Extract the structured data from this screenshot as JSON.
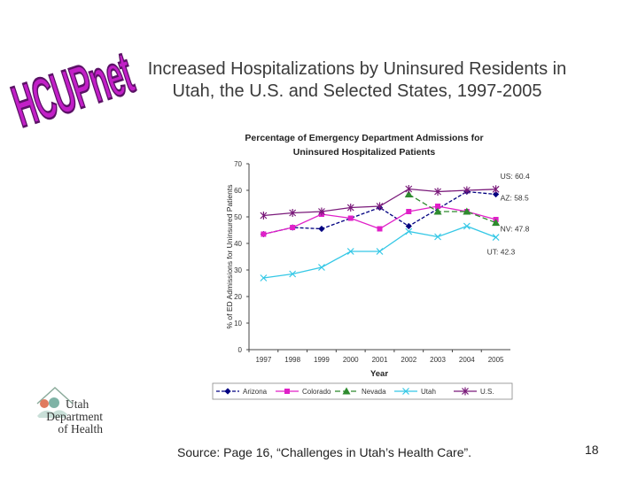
{
  "logo": {
    "text": "HCUPnet"
  },
  "slide": {
    "title_line1": "Increased Hospitalizations by Uninsured Residents in",
    "title_line2": "Utah, the U.S. and Selected States, 1997-2005",
    "source": "Source: Page 16, “Challenges in Utah’s Health Care”.",
    "page_number": "18"
  },
  "agency": {
    "line1": "Utah",
    "line2": "Department",
    "line3": "of Health"
  },
  "colors": {
    "title": "#3a3a3a",
    "logo_fill": "#c21fc7",
    "logo_outline": "#5b1266"
  },
  "chart_data": {
    "type": "line",
    "title_line1": "Percentage of Emergency Department Admissions for",
    "title_line2": "Uninsured Hospitalized Patients",
    "xlabel": "Year",
    "ylabel": "% of ED Admissions for Uninsured Patients",
    "ylim": [
      0,
      70
    ],
    "yticks": [
      0,
      10,
      20,
      30,
      40,
      50,
      60,
      70
    ],
    "categories": [
      "1997",
      "1998",
      "1999",
      "2000",
      "2001",
      "2002",
      "2003",
      "2004",
      "2005"
    ],
    "series": [
      {
        "name": "Arizona",
        "color": "#000080",
        "marker": "diamond",
        "dash": "4,2",
        "values": [
          43.5,
          46,
          45.5,
          null,
          53.5,
          46.5,
          null,
          59.5,
          58.5
        ],
        "end_label": "AZ: 58.5"
      },
      {
        "name": "Colorado",
        "color": "#e020c8",
        "marker": "square",
        "dash": "",
        "values": [
          43.5,
          46,
          51,
          49.5,
          45.5,
          52,
          54,
          52,
          49
        ],
        "end_label": ""
      },
      {
        "name": "Nevada",
        "color": "#2e8b2e",
        "marker": "triangle",
        "dash": "6,3",
        "values": [
          null,
          null,
          null,
          null,
          null,
          58.5,
          52,
          52,
          47.8
        ],
        "end_label": "NV: 47.8"
      },
      {
        "name": "Utah",
        "color": "#35c8e6",
        "marker": "x",
        "dash": "",
        "values": [
          27,
          28.5,
          31,
          37,
          37,
          44.5,
          42.5,
          46.5,
          42.3
        ],
        "end_label": "UT: 42.3"
      },
      {
        "name": "U.S.",
        "color": "#7a1a7a",
        "marker": "asterisk",
        "dash": "",
        "values": [
          50.5,
          51.5,
          52,
          53.5,
          54,
          60.5,
          59.5,
          60,
          60.4
        ],
        "end_label": "US: 60.4"
      }
    ],
    "legend_position": "bottom"
  }
}
